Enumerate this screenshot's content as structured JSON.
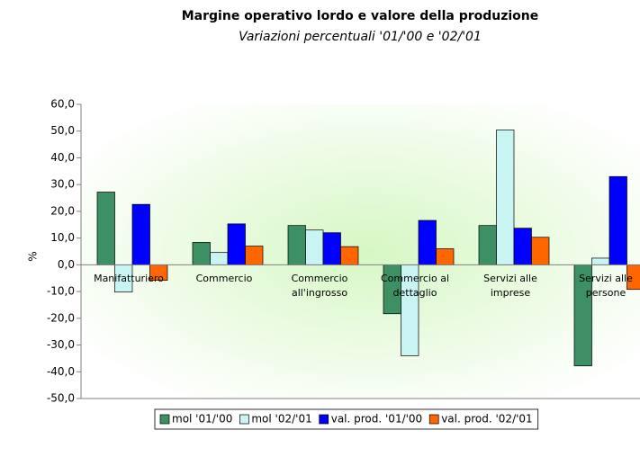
{
  "chart_data": {
    "type": "bar",
    "title": "Margine operativo lordo e valore della produzione",
    "subtitle": "Variazioni percentuali '01/'00 e '02/'01",
    "y_label": "%",
    "categories": [
      "Manifatturiero",
      "Commercio",
      "Commercio all'ingrosso",
      "Commercio al dettaglio",
      "Servizi alle imprese",
      "Servizi alle persone"
    ],
    "series": [
      {
        "name": "mol '01/'00",
        "color": "#3d9063",
        "values": [
          27.2,
          8.4,
          14.7,
          -18.3,
          14.7,
          -37.8
        ]
      },
      {
        "name": "mol '02/'01",
        "color": "#c8f4f4",
        "values": [
          -10.2,
          4.6,
          13.0,
          -34.0,
          50.4,
          2.5
        ]
      },
      {
        "name": "val. prod. '01/'00",
        "color": "#0000ff",
        "values": [
          22.6,
          15.3,
          12.0,
          16.6,
          13.7,
          33.0
        ]
      },
      {
        "name": "val. prod. '02/'01",
        "color": "#ff6600",
        "values": [
          -5.8,
          7.0,
          6.8,
          6.0,
          10.3,
          -9.2
        ]
      }
    ],
    "ylim": [
      -50,
      60
    ],
    "yticks": [
      {
        "value": -50,
        "label": "-50,0"
      },
      {
        "value": -40,
        "label": "-40,0"
      },
      {
        "value": -30,
        "label": "-30,0"
      },
      {
        "value": -20,
        "label": "-20,0"
      },
      {
        "value": -10,
        "label": "-10,0"
      },
      {
        "value": 0,
        "label": "0,0"
      },
      {
        "value": 10,
        "label": "10,0"
      },
      {
        "value": 20,
        "label": "20,0"
      },
      {
        "value": 30,
        "label": "30,0"
      },
      {
        "value": 40,
        "label": "40,0"
      },
      {
        "value": 50,
        "label": "50,0"
      },
      {
        "value": 60,
        "label": "60,0"
      }
    ],
    "legend": "bottom"
  }
}
